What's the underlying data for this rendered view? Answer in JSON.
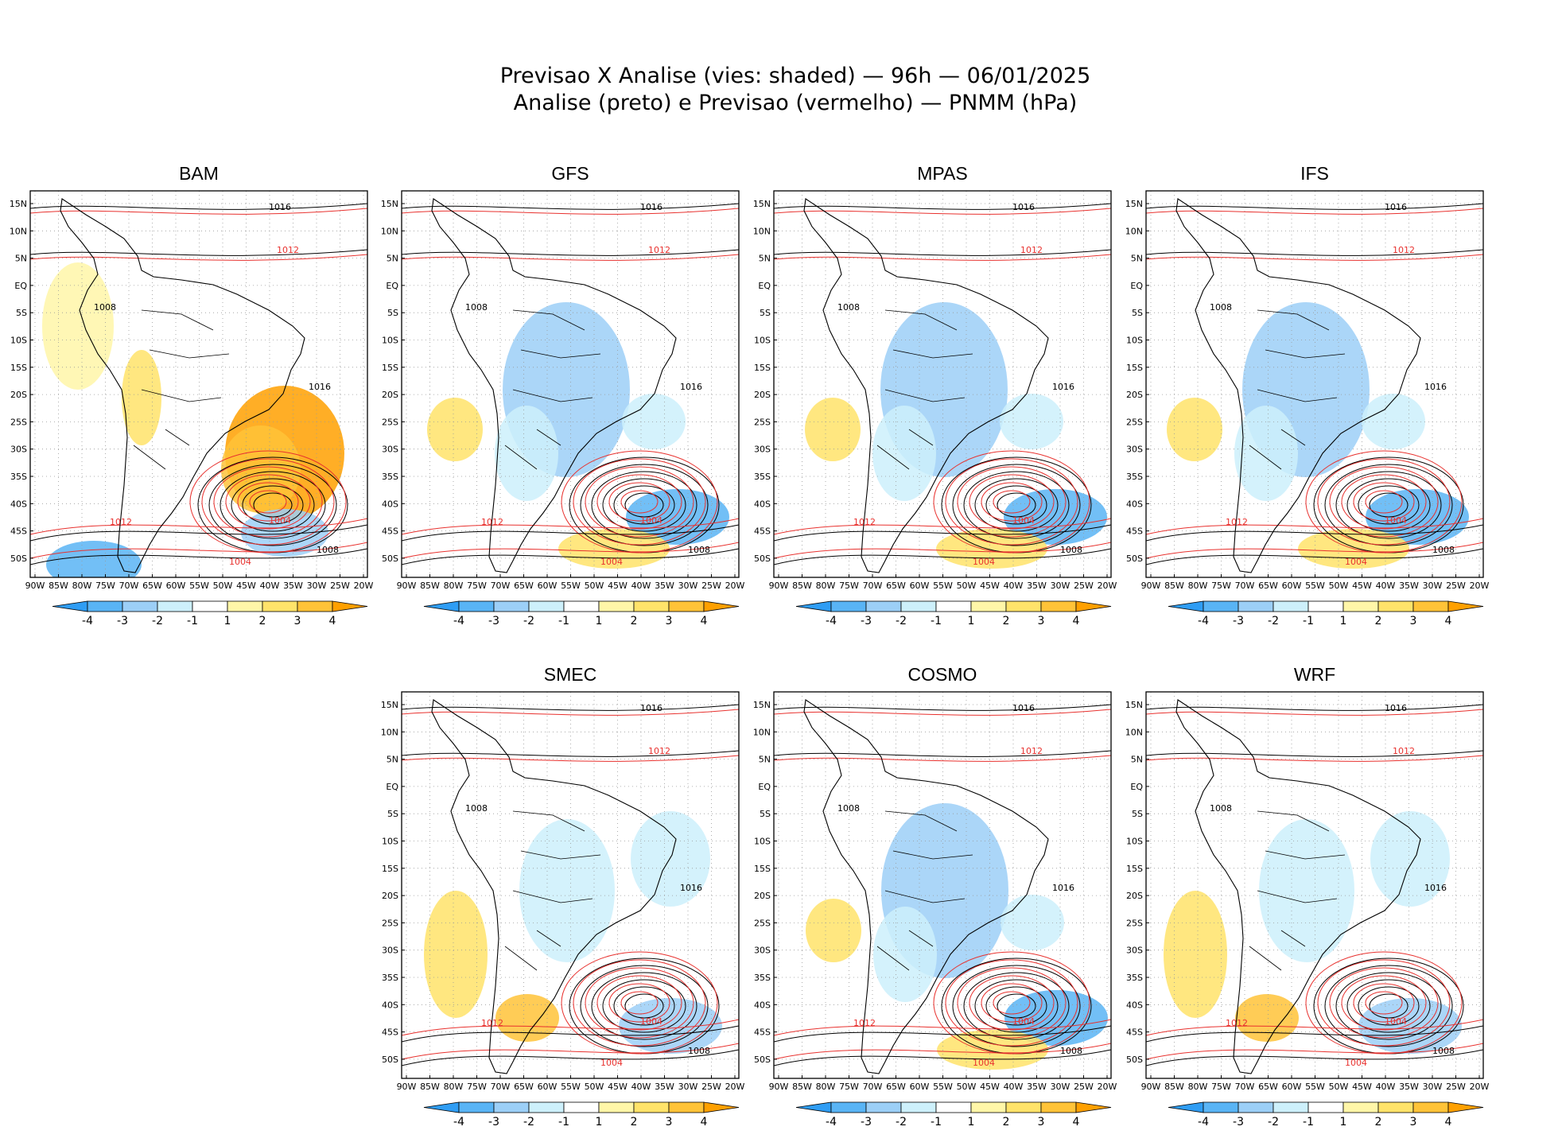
{
  "title": {
    "line1": "Previsao X Analise (vies: shaded) — 96h — 06/01/2025",
    "line2": "Analise (preto) e Previsao (vermelho) — PNMM (hPa)"
  },
  "panels": [
    {
      "name": "BAM",
      "bias": "warm"
    },
    {
      "name": "GFS",
      "bias": "cool"
    },
    {
      "name": "MPAS",
      "bias": "cool"
    },
    {
      "name": "IFS",
      "bias": "cool"
    },
    {
      "name": "SMEC",
      "bias": "mixed"
    },
    {
      "name": "COSMO",
      "bias": "cool"
    },
    {
      "name": "WRF",
      "bias": "mixed"
    }
  ],
  "lon_ticks": [
    "90W",
    "85W",
    "80W",
    "75W",
    "70W",
    "65W",
    "60W",
    "55W",
    "50W",
    "45W",
    "40W",
    "35W",
    "30W",
    "25W",
    "20W"
  ],
  "lat_ticks": [
    "15N",
    "10N",
    "5N",
    "EQ",
    "5S",
    "10S",
    "15S",
    "20S",
    "25S",
    "30S",
    "35S",
    "40S",
    "45S",
    "50S"
  ],
  "colorbar": {
    "labels": [
      "-4",
      "-3",
      "-2",
      "-1",
      "1",
      "2",
      "3",
      "4"
    ],
    "colors": [
      "#2f9df4",
      "#59b4f5",
      "#9ccff7",
      "#cdf0fb",
      "#ffffff",
      "#fff6a8",
      "#ffe36a",
      "#ffc338",
      "#ffa000"
    ]
  },
  "isobars": {
    "analysis_color": "#000000",
    "forecast_color": "#e8312e",
    "labels": [
      "1016",
      "1012",
      "1008",
      "1004",
      "1016",
      "1012",
      "1008",
      "1004"
    ]
  }
}
